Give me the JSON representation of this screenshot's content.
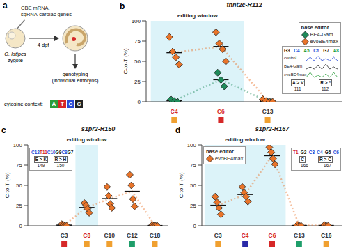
{
  "diagram": {
    "panel": "a",
    "injection": [
      "CBE mRNA,",
      "sgRNA-cardiac genes"
    ],
    "zygote": [
      "O. latipes",
      "zygote"
    ],
    "stage": "4 dpf",
    "readout": [
      "genotyping",
      "(individual embryos)"
    ],
    "cytosine_context": {
      "label": "cytosine context:",
      "bases": [
        "A",
        "T",
        "C",
        "G"
      ]
    }
  },
  "chart_data": [
    {
      "panel": "b",
      "type": "scatter",
      "title": "tnnt2c-R112",
      "y_label": "C-to-T (%)",
      "categories": [
        "C4",
        "C6",
        "C13"
      ],
      "category_label_colors": [
        "#d62828",
        "#d62828",
        "#333333"
      ],
      "category_marker_colors": [
        "#f0a030",
        "#d62828",
        "#f0a030"
      ],
      "editing_window": {
        "label": "editing window",
        "categories": [
          "C4",
          "C6"
        ]
      },
      "ylim": [
        0,
        100
      ],
      "yticks": [
        0,
        25,
        50,
        75,
        100
      ],
      "grid": false,
      "marker": "diamond",
      "legend": "upper right",
      "legend_title": "base editor",
      "series": [
        {
          "name": "BE4-Gam",
          "color": "#1f8a5a",
          "values": [
            [
              3,
              1,
              0
            ],
            [
              36,
              27,
              19
            ],
            [
              1,
              0,
              0
            ]
          ]
        },
        {
          "name": "evoBE4max",
          "color": "#e8742a",
          "values": [
            [
              80,
              62,
              55,
              46
            ],
            [
              86,
              72,
              65,
              50
            ],
            [
              3,
              1,
              0,
              0
            ]
          ]
        }
      ],
      "inset": {
        "sequence": [
          "G3",
          "C4",
          "A5",
          "C6",
          "G7",
          "A8"
        ],
        "rows": [
          "control",
          "BE4-Gam",
          "evoBE4max"
        ],
        "changes": [
          "A > V",
          "R > *"
        ],
        "positions": [
          111,
          112
        ]
      }
    },
    {
      "panel": "c",
      "type": "scatter",
      "title": "s1pr2-R150",
      "y_label": "C-to-T (%)",
      "categories": [
        "C3",
        "C8",
        "C10",
        "C12",
        "C18"
      ],
      "category_label_colors": [
        "#333333",
        "#d62828",
        "#333333",
        "#333333",
        "#333333"
      ],
      "category_marker_colors": [
        "#d62828",
        "#f0a030",
        "#f0a030",
        "#1e9e6a",
        "#f0a030"
      ],
      "editing_window": {
        "label": "editing window",
        "categories": [
          "C8",
          "C8"
        ]
      },
      "ylim": [
        0,
        100
      ],
      "yticks": [
        0,
        25,
        50,
        75,
        100
      ],
      "grid": false,
      "marker": "diamond",
      "legend": false,
      "series": [
        {
          "name": "evoBE4max",
          "color": "#e8742a",
          "values": [
            [
              2,
              1,
              0,
              0
            ],
            [
              28,
              25,
              21,
              16
            ],
            [
              48,
              37,
              27,
              22
            ],
            [
              63,
              50,
              33,
              24
            ],
            [
              1,
              0,
              0,
              0
            ]
          ]
        }
      ],
      "inset": {
        "sequence": [
          "C12",
          "T11",
          "C10",
          "G9",
          "C8",
          "G7"
        ],
        "changes": [
          "E > K",
          "R > H"
        ],
        "positions": [
          149,
          150
        ]
      }
    },
    {
      "panel": "d",
      "type": "scatter",
      "title": "s1pr2-R167",
      "y_label": "C-to-T (%)",
      "categories": [
        "C3",
        "C4",
        "C6",
        "C13",
        "C16"
      ],
      "category_label_colors": [
        "#333333",
        "#d62828",
        "#d62828",
        "#333333",
        "#333333"
      ],
      "category_marker_colors": [
        "#f0a030",
        "#2a2aa8",
        "#d62828",
        "#1e9e6a",
        "#f0a030"
      ],
      "editing_window": {
        "label": "editing window",
        "categories": [
          "C3",
          "C6"
        ]
      },
      "ylim": [
        0,
        100
      ],
      "yticks": [
        0,
        25,
        50,
        75,
        100
      ],
      "grid": false,
      "marker": "diamond",
      "legend": "upper left",
      "legend_title": "base editor",
      "series": [
        {
          "name": "evoBE4max",
          "color": "#e8742a",
          "values": [
            [
              36,
              29,
              22,
              14
            ],
            [
              48,
              41,
              36,
              30
            ],
            [
              97,
              91,
              83,
              76
            ],
            [
              1,
              0,
              0
            ],
            [
              1,
              0,
              0
            ]
          ]
        }
      ],
      "inset": {
        "sequence": [
          "T1",
          "G2",
          "C3",
          "C4",
          "G5",
          "C6"
        ],
        "changes": [
          "C",
          "R > C"
        ],
        "positions": [
          166,
          167
        ]
      }
    }
  ]
}
